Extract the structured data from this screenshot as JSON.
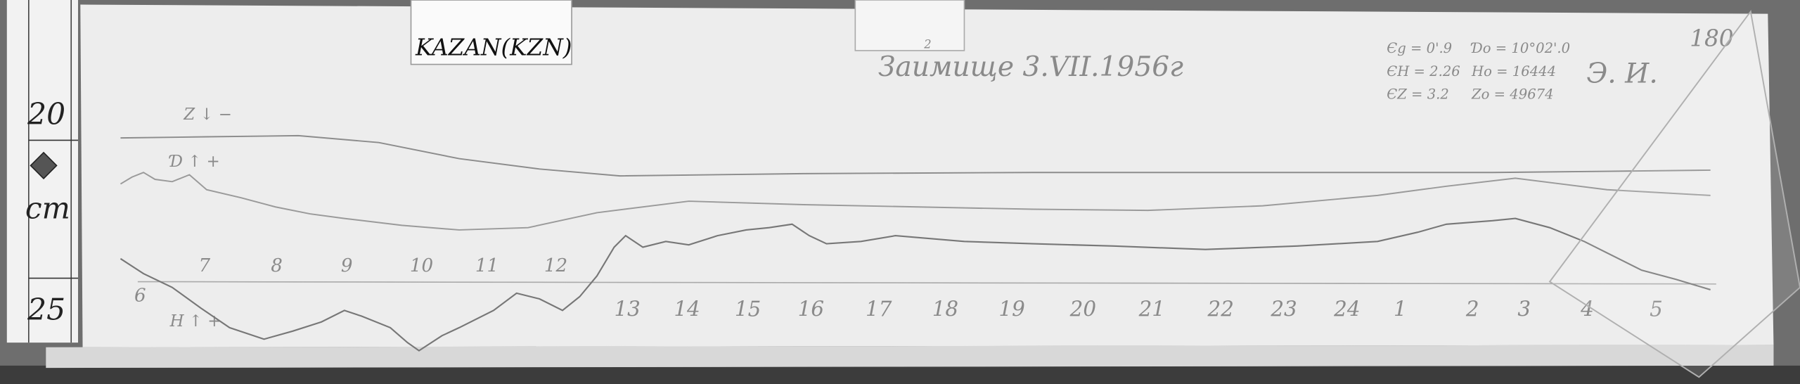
{
  "station_label": "KAZAN(KZN)",
  "title": "Заимище 3.VII.1956г",
  "tab_mark": "2",
  "corner_number": "180",
  "initials": "Э. И.",
  "ruler": {
    "top_value": "20",
    "unit": "cm",
    "bottom_value": "25"
  },
  "constants": {
    "eps_d": "Єg = 0'.9",
    "eps_h": "ЄH = 2.26",
    "eps_z": "ЄZ = 3.2",
    "d0": "Ɗo = 10°02'.0",
    "h0": "Ho = 16444",
    "z0": "Zo = 49674"
  },
  "trace_labels": {
    "z": "Z ↓ −",
    "d": "Ɗ ↑ +",
    "h": "H ↑ +"
  },
  "hours_upper": [
    "6",
    "7",
    "8",
    "9",
    "10",
    "11",
    "12"
  ],
  "hours_lower": [
    "13",
    "14",
    "15",
    "16",
    "17",
    "18",
    "19",
    "20",
    "21",
    "22",
    "23",
    "24",
    "1",
    "2",
    "3",
    "4",
    "5"
  ]
}
